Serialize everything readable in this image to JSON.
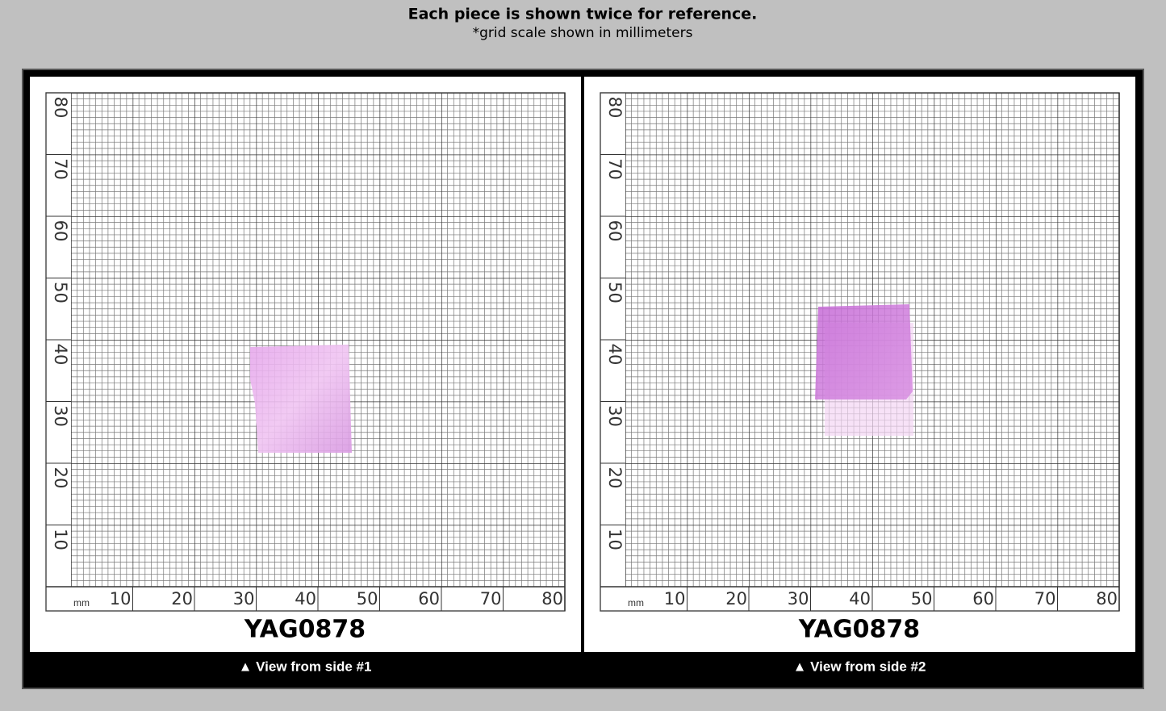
{
  "header": {
    "title": "Each piece is shown twice for reference.",
    "subtitle": "*grid scale shown in millimeters"
  },
  "panels": [
    {
      "unit": "mm",
      "y_labels": [
        "80",
        "70",
        "60",
        "50",
        "40",
        "30",
        "20",
        "10"
      ],
      "x_labels": [
        "10",
        "20",
        "30",
        "40",
        "50",
        "60",
        "70",
        "80"
      ],
      "sample_id": "YAG0878",
      "caption": "▲ View from side #1"
    },
    {
      "unit": "mm",
      "y_labels": [
        "80",
        "70",
        "60",
        "50",
        "40",
        "30",
        "20",
        "10"
      ],
      "x_labels": [
        "10",
        "20",
        "30",
        "40",
        "50",
        "60",
        "70",
        "80"
      ],
      "sample_id": "YAG0878",
      "caption": "▲ View from side #2"
    }
  ]
}
